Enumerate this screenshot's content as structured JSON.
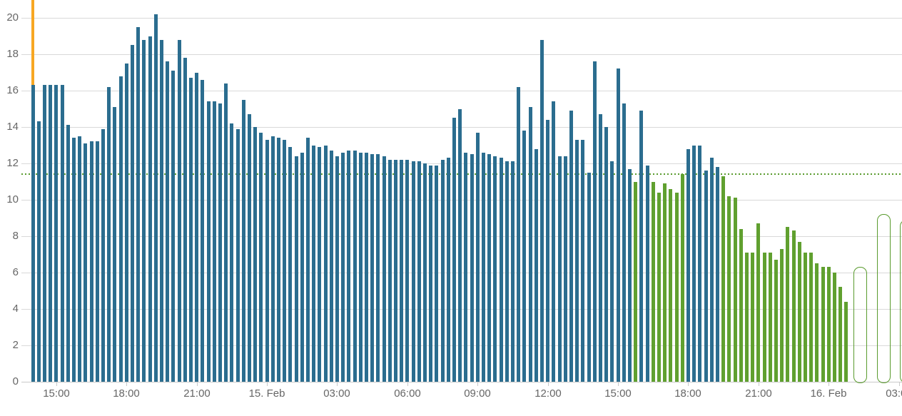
{
  "chart_data": {
    "type": "bar",
    "title": "",
    "xlabel": "",
    "ylabel": "",
    "start_time": "14. Feb 14:00",
    "interval_minutes": 15,
    "ylim": [
      0,
      21
    ],
    "yticks": [
      0,
      2,
      4,
      6,
      8,
      10,
      12,
      14,
      16,
      18,
      20
    ],
    "xtick_labels": [
      "15:00",
      "18:00",
      "21:00",
      "15. Feb",
      "03:00",
      "06:00",
      "09:00",
      "12:00",
      "15:00",
      "18:00",
      "21:00",
      "16. Feb",
      "03:00"
    ],
    "grid": true,
    "legend": "none",
    "threshold_value": 11.4,
    "now_marker_at_bar_index": 0,
    "values": [
      16.3,
      14.3,
      16.3,
      16.3,
      16.3,
      16.3,
      14.1,
      13.4,
      13.5,
      13.1,
      13.2,
      13.2,
      13.9,
      16.2,
      15.1,
      16.8,
      17.5,
      18.5,
      19.5,
      18.8,
      19.0,
      20.2,
      18.8,
      17.6,
      17.1,
      18.8,
      17.8,
      16.7,
      17.0,
      16.6,
      15.4,
      15.4,
      15.3,
      16.4,
      14.2,
      13.9,
      15.5,
      14.7,
      14.0,
      13.7,
      13.3,
      13.5,
      13.4,
      13.3,
      12.9,
      12.4,
      12.6,
      13.4,
      13.0,
      12.9,
      13.0,
      12.7,
      12.4,
      12.6,
      12.7,
      12.7,
      12.6,
      12.6,
      12.5,
      12.5,
      12.4,
      12.2,
      12.2,
      12.2,
      12.2,
      12.1,
      12.1,
      12.0,
      11.9,
      11.9,
      12.2,
      12.3,
      14.5,
      15.0,
      12.6,
      12.5,
      13.7,
      12.6,
      12.5,
      12.4,
      12.3,
      12.1,
      12.1,
      16.2,
      13.8,
      15.1,
      12.8,
      18.8,
      14.4,
      15.4,
      12.4,
      12.4,
      14.9,
      13.3,
      13.3,
      11.5,
      17.6,
      14.7,
      14.0,
      12.1,
      17.2,
      15.3,
      11.7,
      11.0,
      14.9,
      11.9,
      11.0,
      10.4,
      10.9,
      10.6,
      10.4,
      11.4,
      12.8,
      13.0,
      13.0,
      11.6,
      12.3,
      11.8,
      11.3,
      10.2,
      10.1,
      8.4,
      7.1,
      7.1,
      8.7,
      7.1,
      7.1,
      6.7,
      7.3,
      8.5,
      8.3,
      7.7,
      7.1,
      7.1,
      6.5,
      6.3,
      6.3,
      6.0,
      5.2,
      4.4
    ],
    "color_runs": [
      [
        "obs",
        103
      ],
      [
        "alt",
        1
      ],
      [
        "obs",
        2
      ],
      [
        "alt",
        6
      ],
      [
        "obs",
        6
      ],
      [
        "alt",
        22
      ]
    ],
    "forecast_outline_values": [
      6.3,
      9.2,
      8.9
    ],
    "colors": {
      "observed_bar": "#2b6d8f",
      "green_bar": "#60a02f",
      "forecast_outline": "#5a9b2e",
      "threshold_line": "#5a9b2e",
      "now_marker": "#f7a723",
      "grid_line": "#d9d9d9",
      "axis_text": "#666666"
    }
  }
}
